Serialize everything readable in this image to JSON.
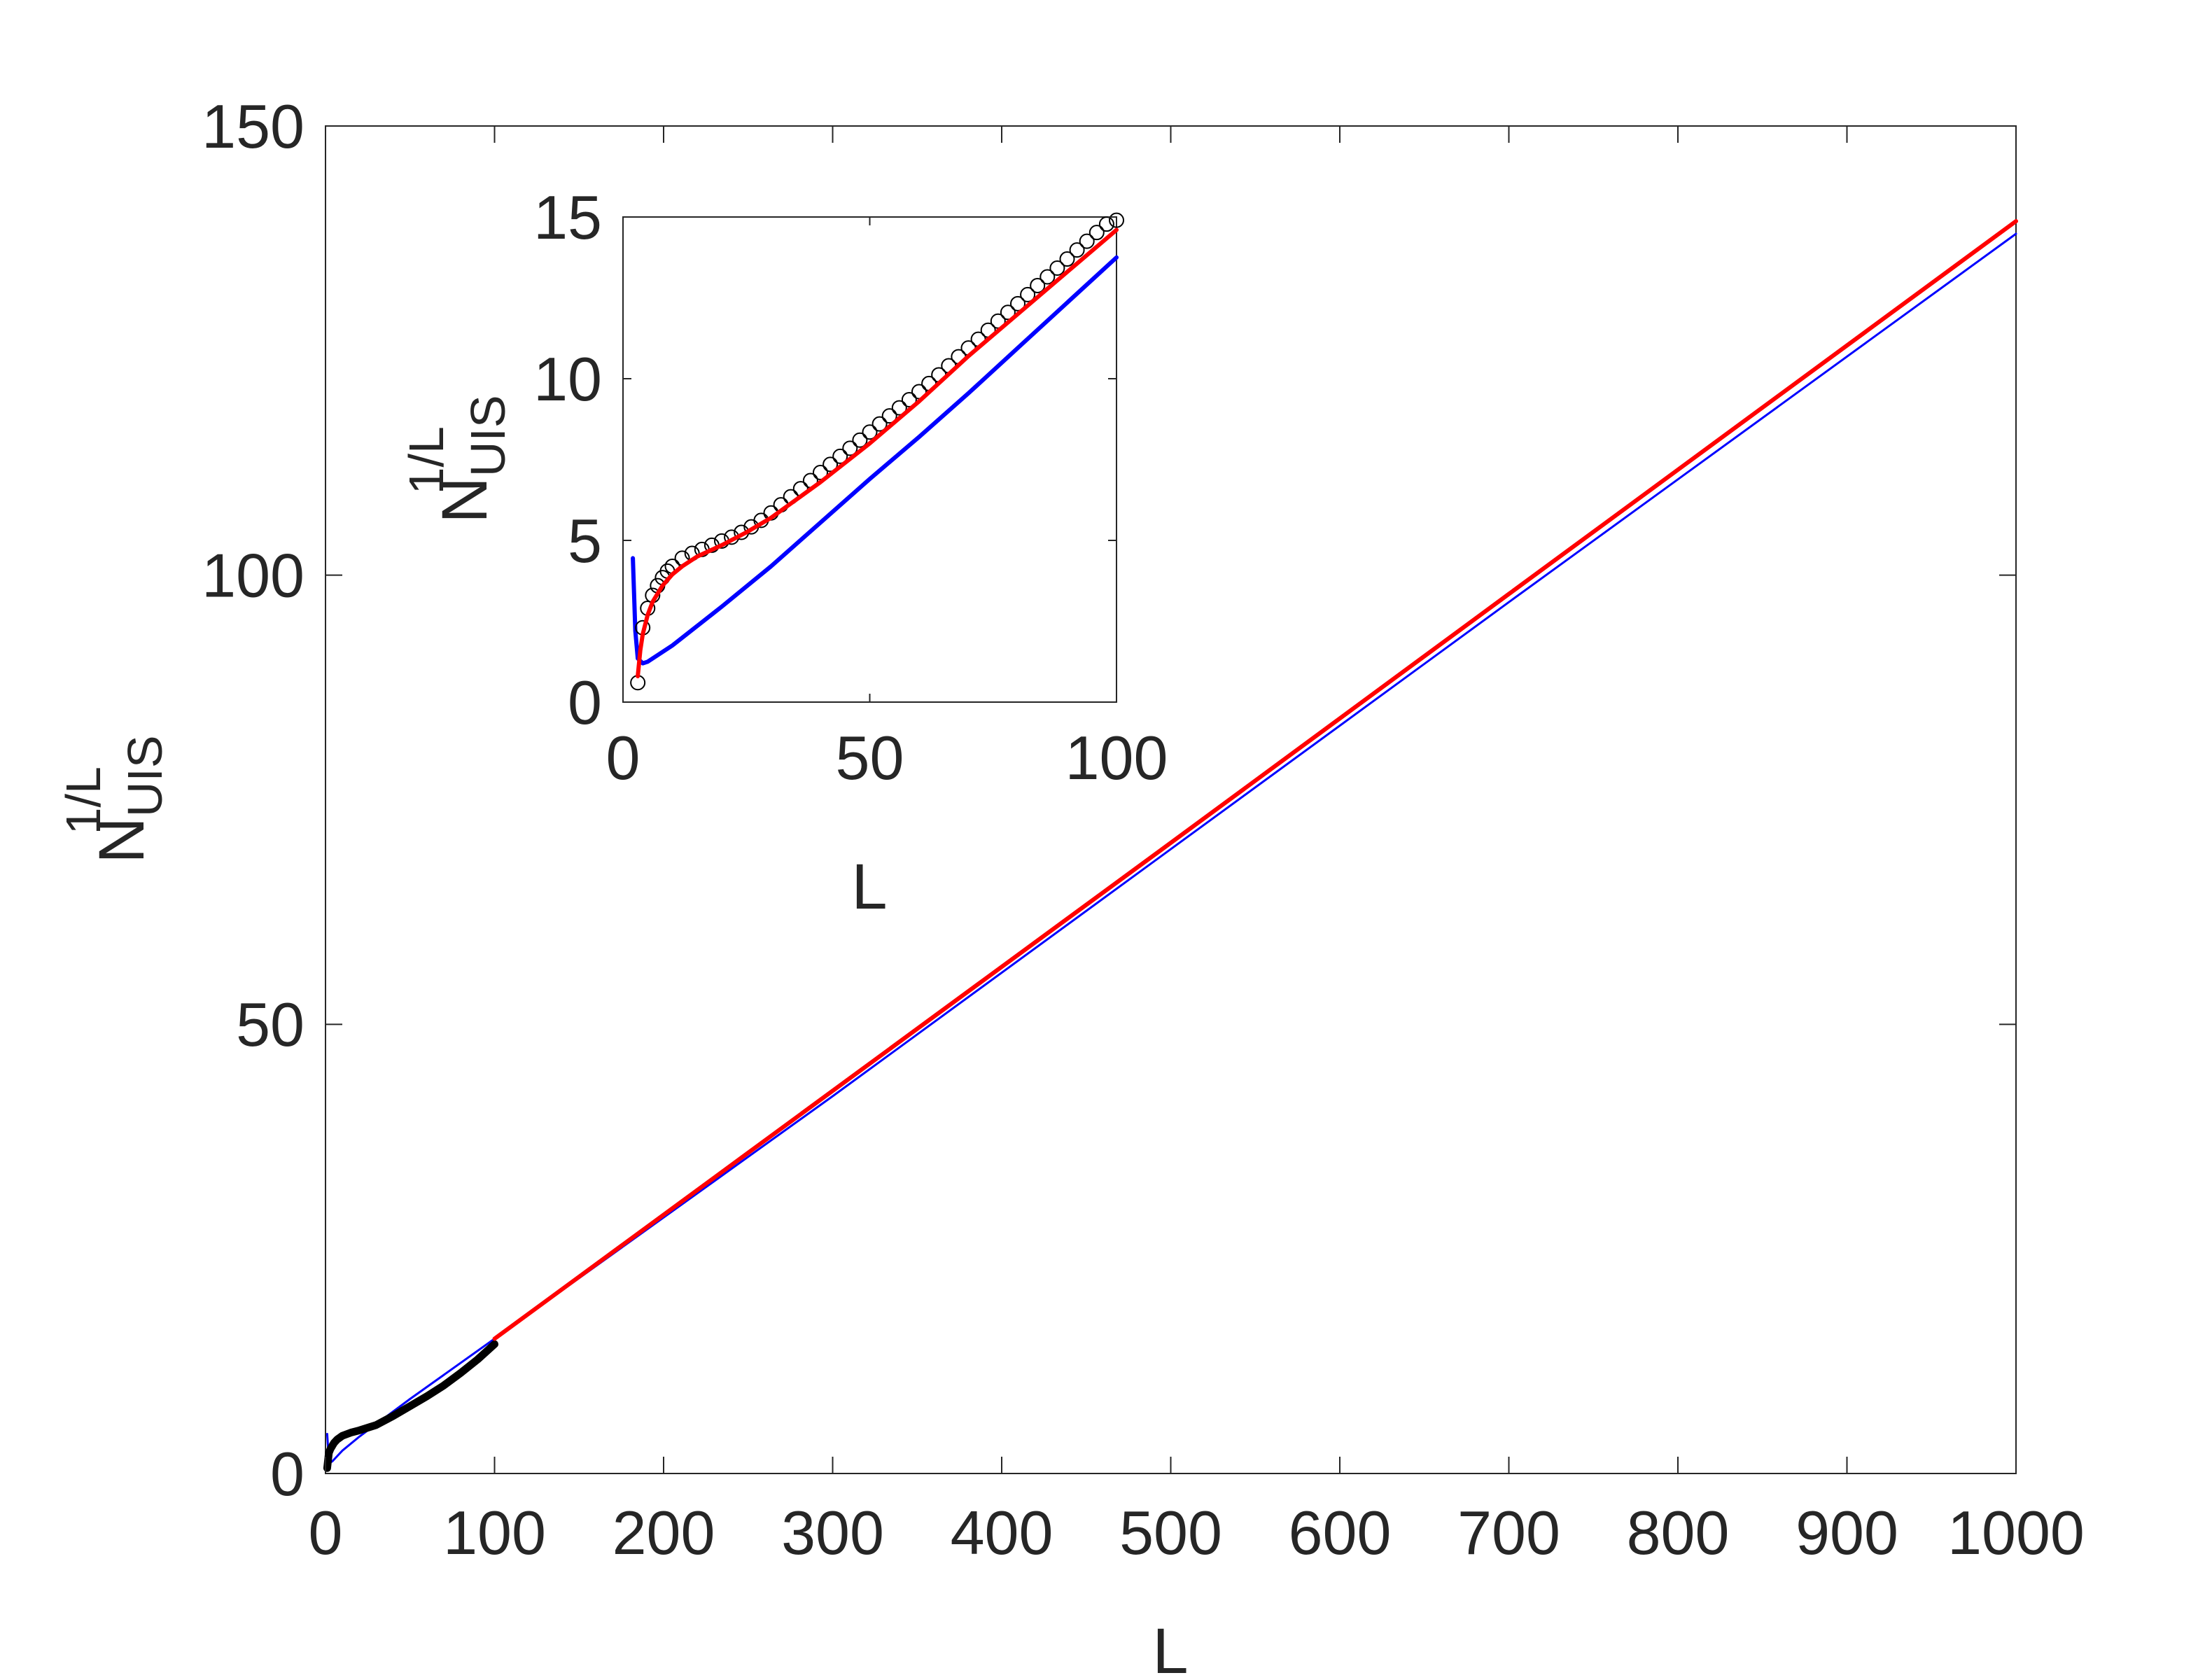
{
  "chart_data": [
    {
      "id": "main",
      "type": "line",
      "xlabel": "L",
      "ylabel": {
        "base": "N",
        "sub": "UIS",
        "sup": "1/L"
      },
      "xlim": [
        0,
        1000
      ],
      "ylim": [
        0,
        150
      ],
      "xticks": [
        0,
        100,
        200,
        300,
        400,
        500,
        600,
        700,
        800,
        900,
        1000
      ],
      "yticks": [
        0,
        50,
        100,
        150
      ],
      "grid": false,
      "series": [
        {
          "kind": "line",
          "color": "#0000ff",
          "x": [
            1,
            2,
            3,
            4,
            5,
            7,
            10,
            20,
            50,
            100,
            300,
            500,
            700,
            1000
          ],
          "y": [
            4.4,
            1.5,
            1.25,
            1.35,
            1.55,
            1.95,
            2.55,
            4.1,
            8.3,
            15.0,
            42.0,
            69.5,
            97.0,
            138.0
          ]
        },
        {
          "kind": "line",
          "color": "#000000",
          "x": [
            1,
            2,
            3,
            5,
            7,
            10,
            15,
            20,
            30,
            40,
            50,
            60,
            70,
            80,
            90,
            100
          ],
          "y": [
            0.6,
            2.3,
            2.75,
            3.4,
            3.8,
            4.2,
            4.55,
            4.8,
            5.4,
            6.4,
            7.5,
            8.6,
            9.8,
            11.2,
            12.7,
            14.4
          ]
        },
        {
          "kind": "line",
          "color": "#ff0000",
          "x": [
            100,
            300,
            500,
            700,
            1000
          ],
          "y": [
            15.0,
            42.6,
            70.2,
            97.9,
            139.4
          ]
        }
      ]
    },
    {
      "id": "inset",
      "type": "line",
      "xlabel": "L",
      "ylabel": {
        "base": "N",
        "sub": "UIS",
        "sup": "1/L"
      },
      "xlim": [
        0,
        100
      ],
      "ylim": [
        0,
        15
      ],
      "xticks": [
        0,
        50,
        100
      ],
      "yticks": [
        0,
        5,
        10,
        15
      ],
      "grid": false,
      "series": [
        {
          "kind": "line",
          "color": "#0000ff",
          "x": [
            2,
            2.5,
            3,
            4,
            5,
            7,
            10,
            15,
            20,
            30,
            40,
            50,
            60,
            70,
            80,
            90,
            100
          ],
          "y": [
            4.45,
            2.2,
            1.35,
            1.2,
            1.25,
            1.45,
            1.75,
            2.35,
            2.95,
            4.2,
            5.55,
            6.9,
            8.2,
            9.55,
            10.95,
            12.35,
            13.75
          ]
        },
        {
          "kind": "markers",
          "color": "#000000",
          "x": [
            3,
            4,
            5,
            6,
            7,
            8,
            9,
            10,
            12,
            14,
            16,
            18,
            20,
            22,
            24,
            26,
            28,
            30,
            32,
            34,
            36,
            38,
            40,
            42,
            44,
            46,
            48,
            50,
            52,
            54,
            56,
            58,
            60,
            62,
            64,
            66,
            68,
            70,
            72,
            74,
            76,
            78,
            80,
            82,
            84,
            86,
            88,
            90,
            92,
            94,
            96,
            98,
            100
          ],
          "y": [
            0.6,
            2.3,
            2.9,
            3.3,
            3.6,
            3.85,
            4.05,
            4.2,
            4.45,
            4.6,
            4.72,
            4.85,
            4.98,
            5.1,
            5.25,
            5.42,
            5.62,
            5.85,
            6.1,
            6.35,
            6.6,
            6.85,
            7.1,
            7.35,
            7.6,
            7.85,
            8.1,
            8.35,
            8.6,
            8.85,
            9.1,
            9.35,
            9.6,
            9.85,
            10.12,
            10.4,
            10.68,
            10.95,
            11.22,
            11.5,
            11.78,
            12.05,
            12.32,
            12.6,
            12.88,
            13.15,
            13.42,
            13.7,
            13.98,
            14.25,
            14.52,
            14.78,
            14.9
          ]
        },
        {
          "kind": "line",
          "color": "#ff0000",
          "x": [
            3,
            3.5,
            4,
            5,
            6,
            8,
            10,
            12,
            15,
            20,
            25,
            30,
            40,
            50,
            60,
            70,
            80,
            90,
            100
          ],
          "y": [
            0.8,
            1.6,
            2.1,
            2.7,
            3.1,
            3.6,
            3.95,
            4.2,
            4.5,
            4.85,
            5.25,
            5.7,
            6.8,
            8.0,
            9.3,
            10.7,
            12.0,
            13.3,
            14.6
          ]
        }
      ]
    }
  ]
}
